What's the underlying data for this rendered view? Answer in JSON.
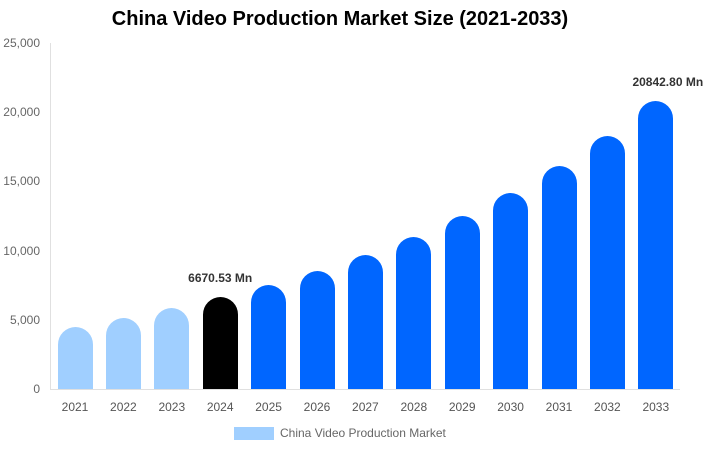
{
  "chart_data": {
    "type": "bar",
    "title": "China Video Production Market Size (2021-2033)",
    "xlabel": "",
    "ylabel": "",
    "ylim": [
      0,
      25000
    ],
    "yticks": [
      "0",
      "5,000",
      "10,000",
      "15,000",
      "20,000",
      "25,000"
    ],
    "categories": [
      "2021",
      "2022",
      "2023",
      "2024",
      "2025",
      "2026",
      "2027",
      "2028",
      "2029",
      "2030",
      "2031",
      "2032",
      "2033"
    ],
    "series": [
      {
        "name": "China Video Production Market",
        "values": [
          4480,
          5130,
          5850,
          6670.53,
          7515,
          8530,
          9690,
          10980,
          12500,
          14160,
          16110,
          18280,
          20842.8
        ]
      }
    ],
    "annotations": [
      {
        "category": "2024",
        "label": "6670.53 Mn"
      },
      {
        "category": "2033",
        "label": "20842.80 Mn"
      }
    ],
    "colors": {
      "historical": "#a0cfff",
      "current": "#000000",
      "forecast": "#0066ff"
    },
    "legend_position": "bottom",
    "grid": false
  }
}
